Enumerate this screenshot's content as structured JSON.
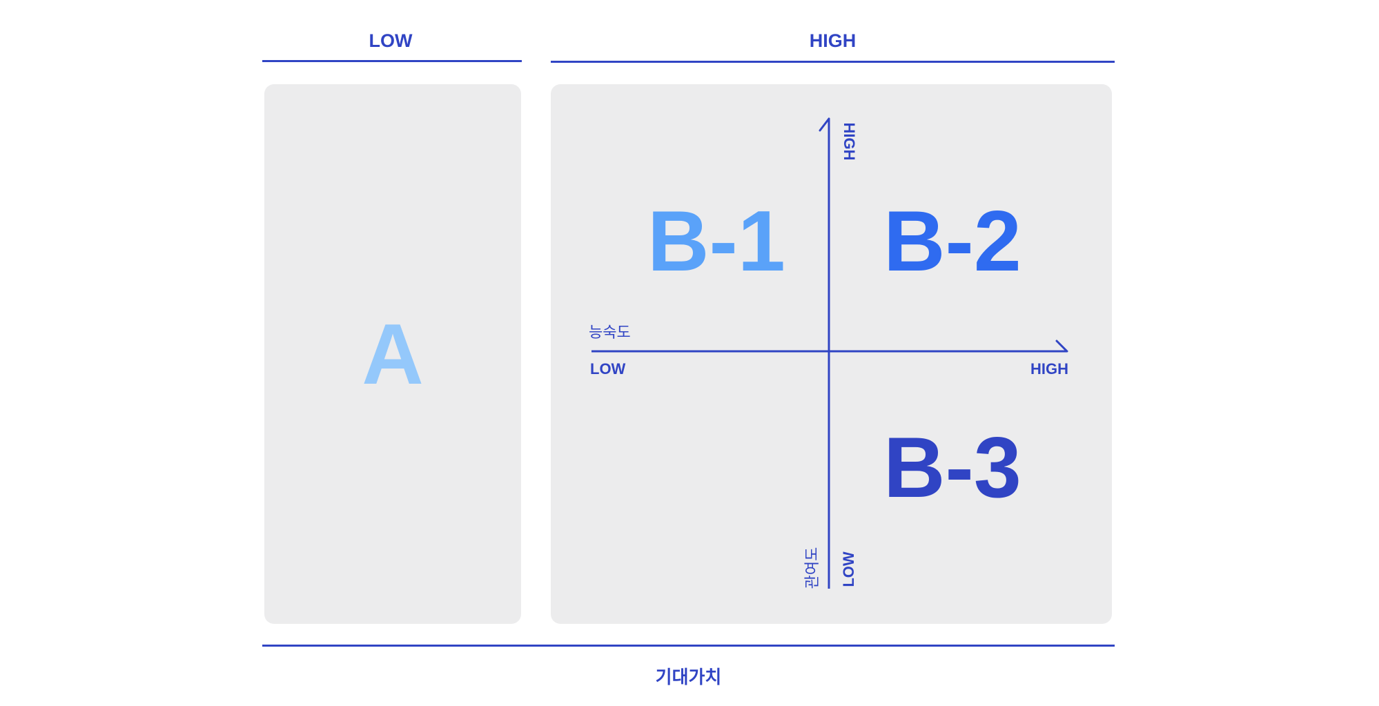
{
  "header": {
    "low_label": "LOW",
    "high_label": "HIGH"
  },
  "segments": {
    "a": "A",
    "b1": "B-1",
    "b2": "B-2",
    "b3": "B-3"
  },
  "matrix": {
    "x_axis_title": "능숙도",
    "x_low": "LOW",
    "x_high": "HIGH",
    "y_axis_title": "관여도",
    "y_low": "LOW",
    "y_high": "HIGH"
  },
  "footer": {
    "title": "기대가치"
  },
  "colors": {
    "axis_blue": "#3044c4",
    "a_color": "#94c8fb",
    "b1_color": "#5aa2f9",
    "b2_color": "#2f6bf0",
    "b3_color": "#3044c4",
    "panel_bg": "#ececed"
  }
}
